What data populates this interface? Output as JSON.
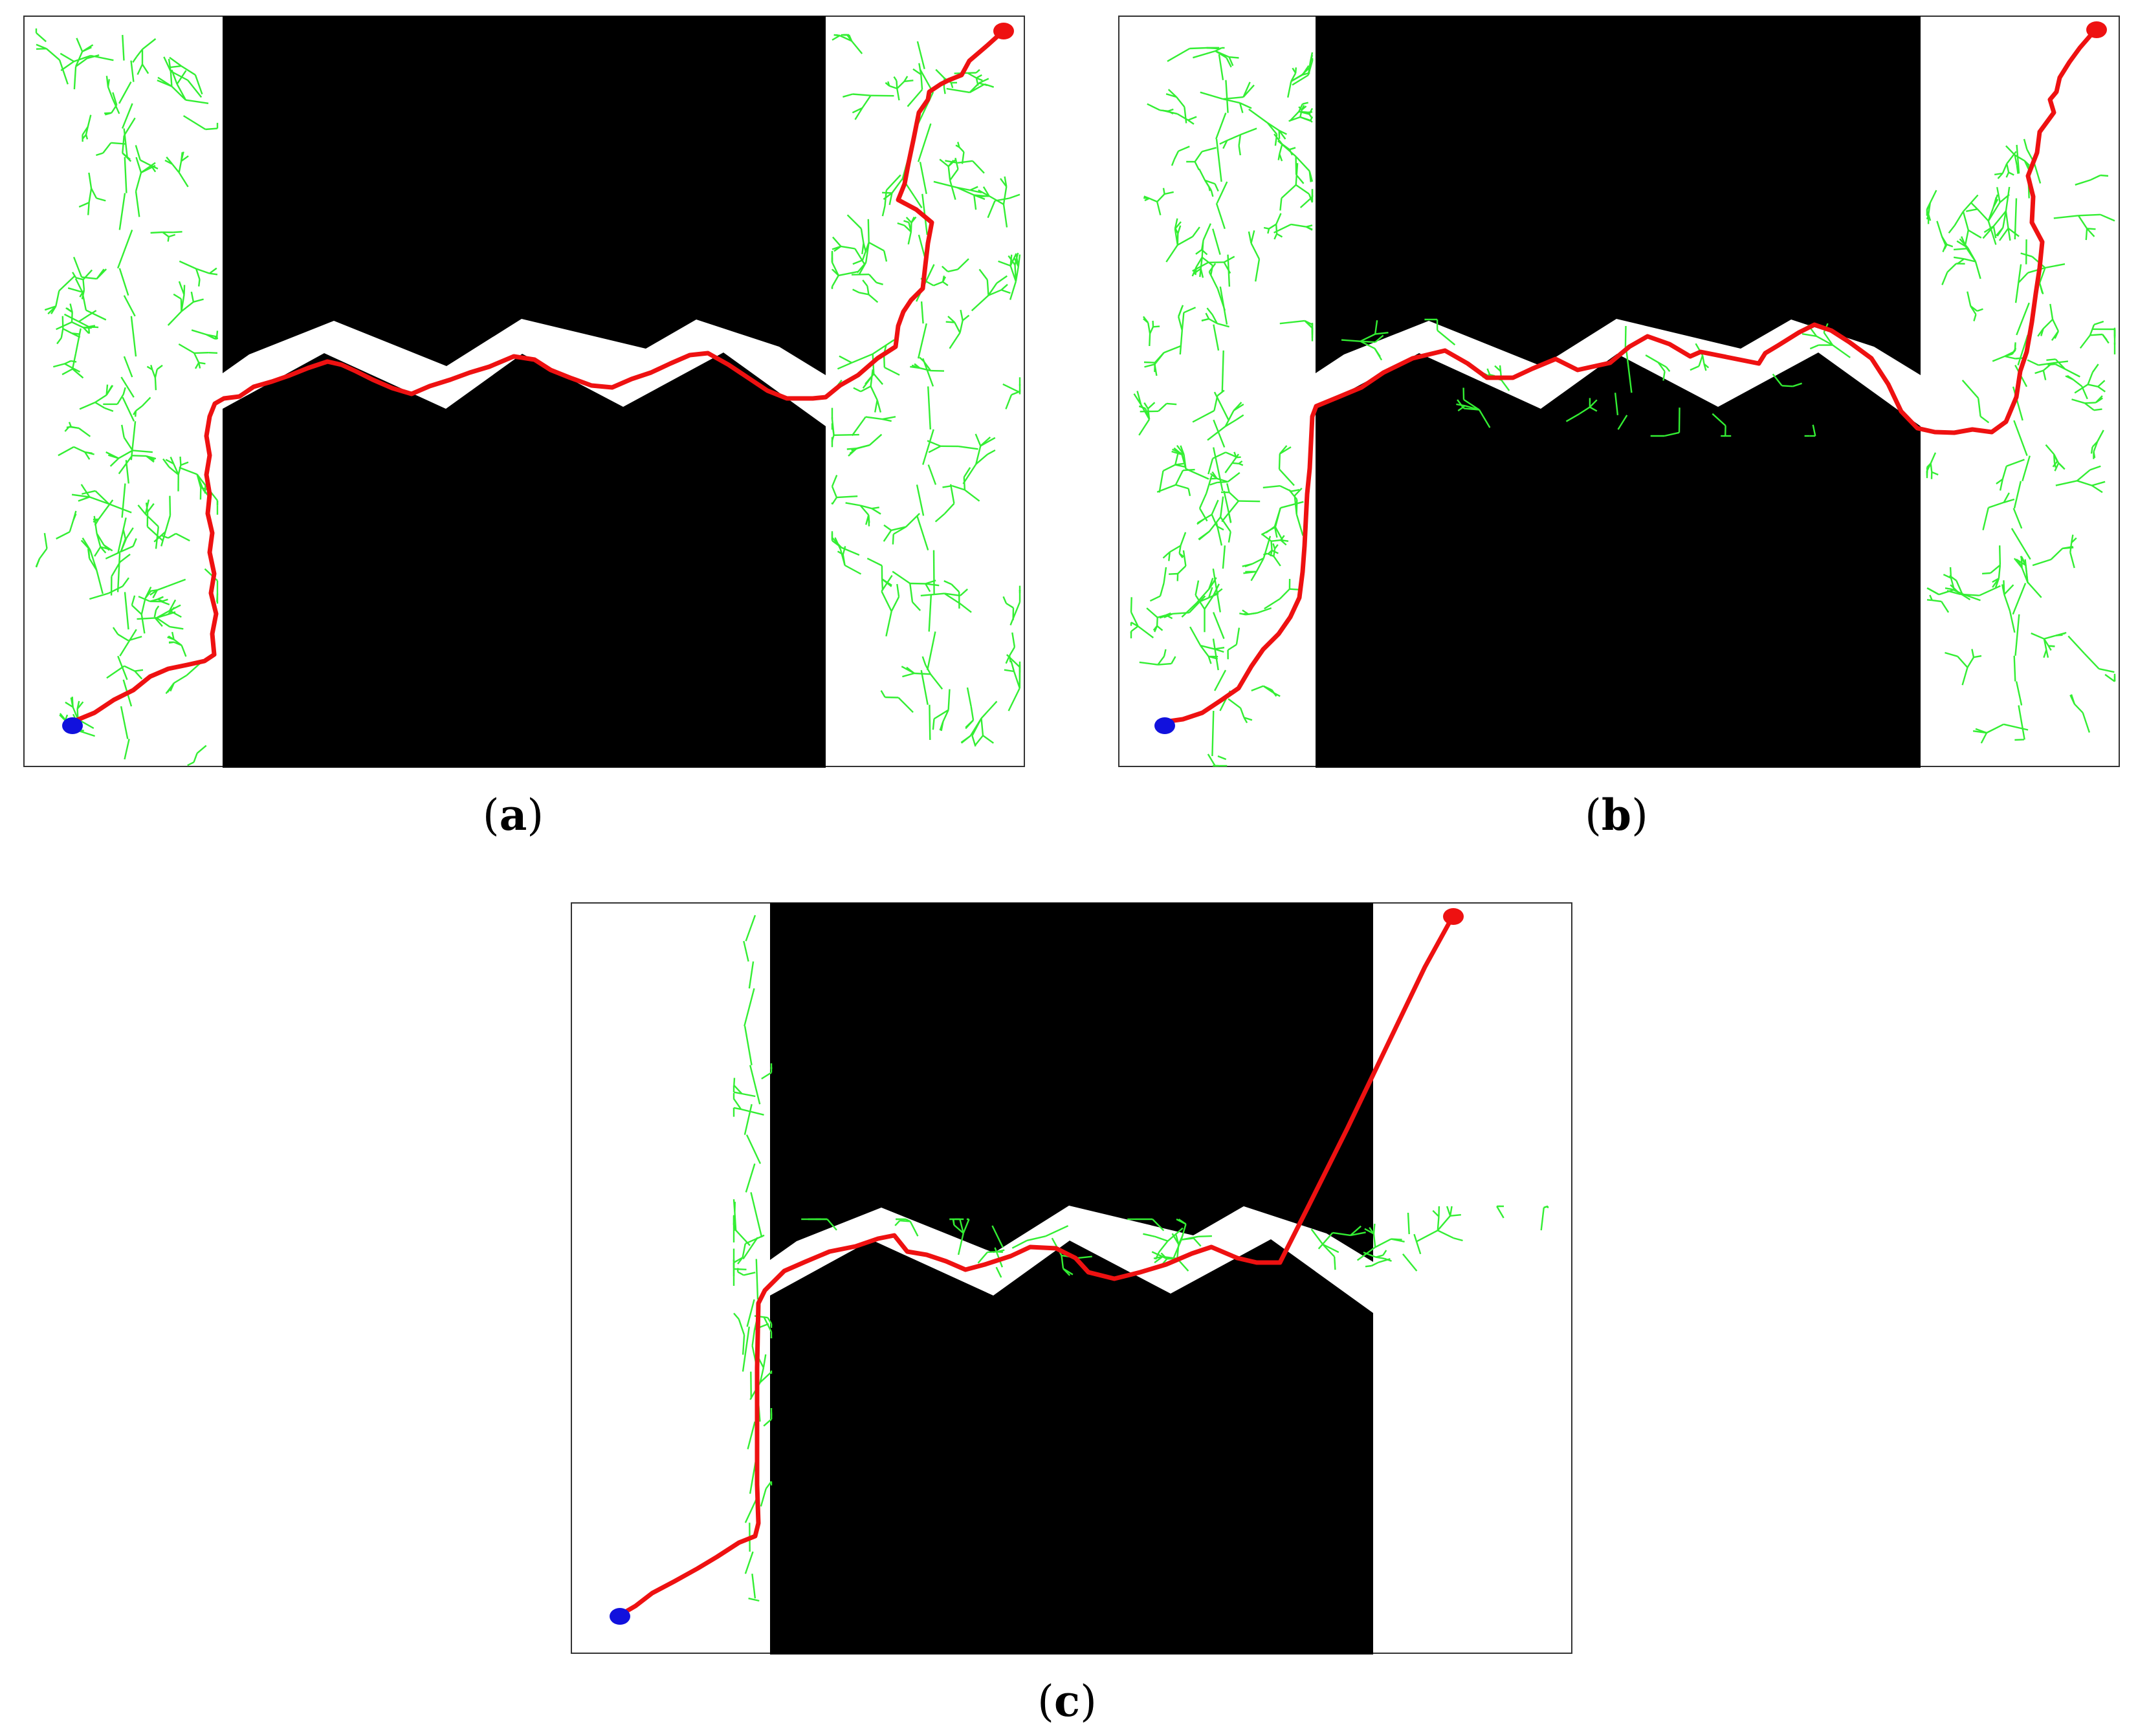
{
  "colors": {
    "background": "#ffffff",
    "obstacle": "#000000",
    "frame": "#333333",
    "tree": "#33ee33",
    "path": "#ee1111",
    "start": "#1111dd",
    "goal": "#ee1111"
  },
  "panels": [
    {
      "id": "a",
      "caption_open": "(",
      "caption_letter": "a",
      "caption_close": ")"
    },
    {
      "id": "b",
      "caption_open": "(",
      "caption_letter": "b",
      "caption_close": ")"
    },
    {
      "id": "c",
      "caption_open": "(",
      "caption_letter": "c",
      "caption_close": ")"
    }
  ]
}
